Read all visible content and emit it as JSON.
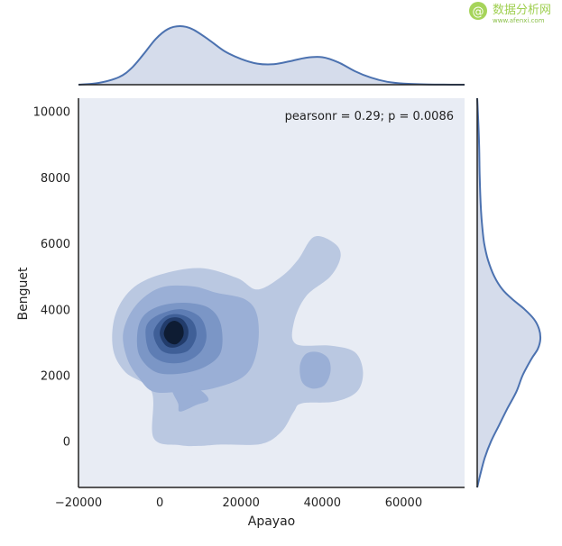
{
  "watermark": {
    "cn": "数据分析网",
    "url": "www.afenxi.com"
  },
  "chart_data": {
    "type": "kde-jointplot",
    "xlabel": "Apayao",
    "ylabel": "Benguet",
    "xlim": [
      -20000,
      75000
    ],
    "ylim": [
      -1400,
      10400
    ],
    "xticks": [
      -20000,
      0,
      20000,
      40000,
      60000
    ],
    "yticks": [
      0,
      2000,
      4000,
      6000,
      8000,
      10000
    ],
    "annotation": "pearsonr = 0.29; p = 0.0086",
    "colors": {
      "levels": [
        "#bac8e1",
        "#9aafd6",
        "#7b96c6",
        "#5e7db4",
        "#3f5f97",
        "#223c6b",
        "#0e1c33"
      ],
      "line": "#4c72b0",
      "marginal_fill": "#d5dceb",
      "panel_bg": "#e8ecf4",
      "axis": "#222222"
    },
    "contour_levels": [
      {
        "level": 1,
        "regions": [
          [
            [
              15000,
              -100
            ],
            [
              25000,
              -80
            ],
            [
              30000,
              300
            ],
            [
              33000,
              900
            ],
            [
              35000,
              1150
            ],
            [
              43000,
              1200
            ],
            [
              48500,
              1500
            ],
            [
              50000,
              2100
            ],
            [
              48000,
              2700
            ],
            [
              42000,
              2900
            ],
            [
              33500,
              2950
            ],
            [
              33000,
              3600
            ],
            [
              36000,
              4400
            ],
            [
              42000,
              5000
            ],
            [
              44500,
              5600
            ],
            [
              43000,
              6000
            ],
            [
              38000,
              6200
            ],
            [
              34000,
              5500
            ],
            [
              30000,
              5000
            ],
            [
              24000,
              4600
            ],
            [
              19000,
              4950
            ],
            [
              10000,
              5250
            ],
            [
              0,
              5050
            ],
            [
              -7000,
              4600
            ],
            [
              -11000,
              3800
            ],
            [
              -11500,
              2800
            ],
            [
              -8500,
              2100
            ],
            [
              -2000,
              1500
            ],
            [
              -1500,
              100
            ],
            [
              5000,
              -120
            ],
            [
              10000,
              -140
            ]
          ]
        ]
      },
      {
        "level": 2,
        "regions": [
          [
            [
              -8000,
              2500
            ],
            [
              -5000,
              1900
            ],
            [
              -1500,
              1500
            ],
            [
              5000,
              1500
            ],
            [
              13000,
              1600
            ],
            [
              21000,
              2000
            ],
            [
              24000,
              2800
            ],
            [
              24000,
              3800
            ],
            [
              21000,
              4300
            ],
            [
              14000,
              4500
            ],
            [
              8000,
              4700
            ],
            [
              0,
              4650
            ],
            [
              -6000,
              4100
            ],
            [
              -9000,
              3300
            ]
          ],
          [
            [
              5000,
              900
            ],
            [
              9000,
              1100
            ],
            [
              12000,
              1250
            ],
            [
              10000,
              1550
            ],
            [
              5500,
              1800
            ],
            [
              3000,
              1600
            ],
            [
              4500,
              1150
            ]
          ],
          [
            [
              36000,
              2650
            ],
            [
              39000,
              2700
            ],
            [
              41500,
              2500
            ],
            [
              42000,
              2100
            ],
            [
              40500,
              1700
            ],
            [
              37500,
              1600
            ],
            [
              35000,
              1800
            ],
            [
              34500,
              2300
            ]
          ]
        ]
      },
      {
        "level": 3,
        "regions": [
          [
            [
              -5500,
              3300
            ],
            [
              -5000,
              2600
            ],
            [
              -1000,
              2100
            ],
            [
              5000,
              2050
            ],
            [
              11000,
              2250
            ],
            [
              15000,
              2700
            ],
            [
              15000,
              3550
            ],
            [
              12000,
              4050
            ],
            [
              6000,
              4200
            ],
            [
              0,
              4100
            ],
            [
              -4000,
              3800
            ]
          ]
        ]
      },
      {
        "level": 4,
        "regions": [
          [
            [
              -3500,
              3300
            ],
            [
              -2500,
              2700
            ],
            [
              1000,
              2400
            ],
            [
              6000,
              2400
            ],
            [
              10000,
              2700
            ],
            [
              11500,
              3200
            ],
            [
              10000,
              3750
            ],
            [
              5500,
              4000
            ],
            [
              1000,
              3900
            ],
            [
              -2500,
              3650
            ]
          ]
        ]
      },
      {
        "level": 5,
        "regions": [
          [
            [
              -1500,
              3300
            ],
            [
              0,
              2800
            ],
            [
              3000,
              2650
            ],
            [
              7000,
              2750
            ],
            [
              9000,
              3200
            ],
            [
              8000,
              3650
            ],
            [
              4500,
              3850
            ],
            [
              1000,
              3750
            ]
          ]
        ]
      },
      {
        "level": 6,
        "regions": [
          [
            [
              0,
              3250
            ],
            [
              1500,
              2900
            ],
            [
              4000,
              2850
            ],
            [
              6500,
              3050
            ],
            [
              7000,
              3400
            ],
            [
              5500,
              3700
            ],
            [
              3000,
              3750
            ],
            [
              1000,
              3600
            ]
          ]
        ]
      },
      {
        "level": 7,
        "regions": [
          [
            [
              1000,
              3250
            ],
            [
              2200,
              3000
            ],
            [
              4200,
              2950
            ],
            [
              5800,
              3200
            ],
            [
              5500,
              3500
            ],
            [
              3800,
              3650
            ],
            [
              2000,
              3550
            ]
          ]
        ]
      }
    ],
    "marginal_x": {
      "x": [
        -20000,
        -15000,
        -10000,
        -7000,
        -4000,
        -1000,
        2000,
        5000,
        8000,
        12000,
        16000,
        20000,
        24000,
        28000,
        32000,
        36000,
        40000,
        44000,
        48000,
        52000,
        56000,
        60000,
        66000,
        72000,
        75000
      ],
      "density": [
        0.0,
        0.03,
        0.13,
        0.28,
        0.52,
        0.78,
        0.95,
        1.0,
        0.95,
        0.77,
        0.57,
        0.44,
        0.36,
        0.35,
        0.4,
        0.46,
        0.47,
        0.38,
        0.23,
        0.12,
        0.05,
        0.02,
        0.005,
        0.0,
        0.0
      ]
    },
    "marginal_y": {
      "y": [
        -1400,
        -1000,
        -500,
        0,
        500,
        1000,
        1500,
        2000,
        2500,
        2800,
        3100,
        3400,
        3700,
        4000,
        4300,
        4600,
        5000,
        5500,
        6000,
        6500,
        7000,
        8000,
        9000,
        10000,
        10400
      ],
      "density": [
        0.0,
        0.05,
        0.12,
        0.22,
        0.35,
        0.48,
        0.62,
        0.72,
        0.86,
        0.96,
        1.0,
        0.98,
        0.9,
        0.75,
        0.56,
        0.4,
        0.27,
        0.17,
        0.11,
        0.08,
        0.06,
        0.04,
        0.03,
        0.01,
        0.0
      ]
    }
  }
}
